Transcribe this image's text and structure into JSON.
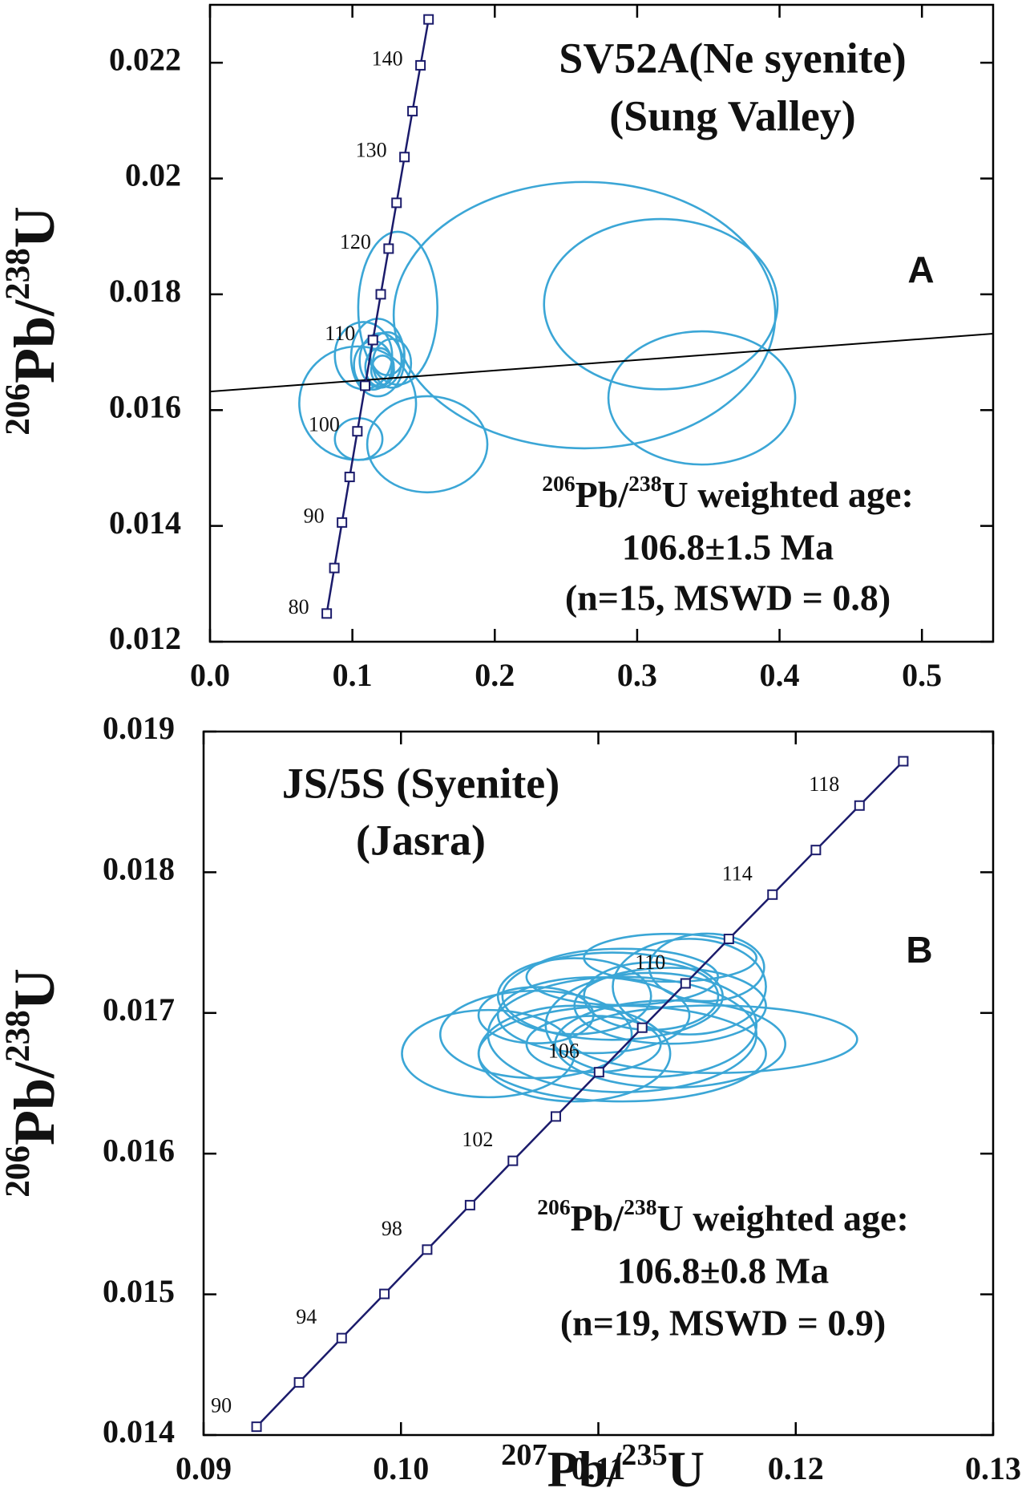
{
  "chart_data": [
    {
      "type": "concordia",
      "title": [
        "SV52A(Ne syenite)",
        "(Sung Valley)"
      ],
      "panel_label": "A",
      "annotation": [
        [
          "206",
          "Pb/",
          "238",
          "U weighted age:"
        ],
        "106.8±1.5 Ma",
        "(n=15, MSWD = 0.8)"
      ],
      "y_label": [
        "206",
        "Pb/",
        "238",
        "U"
      ],
      "xlim": [
        0,
        0.55
      ],
      "xticks": [
        {
          "value": 0,
          "label": "0.0"
        },
        0.1,
        0.2,
        0.3,
        0.4,
        0.5
      ],
      "ylim": [
        0.012,
        0.023
      ],
      "yticks": [
        0.012,
        0.014,
        0.016,
        0.018,
        0.02,
        0.022
      ],
      "concordia_color": "#1b1b6b",
      "concordia": {
        "x": [
          0.081975,
          0.087316,
          0.092683,
          0.098078,
          0.103498,
          0.108945,
          0.114418,
          0.119923,
          0.125448,
          0.131011,
          0.136594,
          0.142195,
          0.147841,
          0.1535
        ],
        "y": [
          0.012487,
          0.013273,
          0.014059,
          0.014846,
          0.015634,
          0.016421,
          0.01721,
          0.018,
          0.018789,
          0.01958,
          0.020371,
          0.021163,
          0.021955,
          0.022748
        ],
        "labels": [
          80,
          null,
          90,
          null,
          100,
          null,
          110,
          null,
          120,
          null,
          130,
          null,
          140,
          null
        ]
      },
      "line": {
        "x": [
          0,
          0.55
        ],
        "y": [
          0.01632,
          0.01732
        ],
        "color": "#000000"
      },
      "ellipse_color": "#3ba6d6",
      "ellipses": {
        "x": [
          0.263,
          0.3166,
          0.3454,
          0.1319,
          0.1526,
          0.1037,
          0.1044,
          0.1078,
          0.1198,
          0.1245,
          0.1191,
          0.1145,
          0.1278,
          0.1212,
          0.1178
        ],
        "y": [
          0.01764,
          0.01783,
          0.01621,
          0.01776,
          0.01541,
          0.01612,
          0.0155,
          0.016942,
          0.016858,
          0.016975,
          0.016741,
          0.016775,
          0.016808,
          0.016691,
          0.016908
        ],
        "x_err": [
          0.134,
          0.082,
          0.0656,
          0.0278,
          0.0422,
          0.041,
          0.0167,
          0.0201,
          0.0147,
          0.012,
          0.01,
          0.0134,
          0.0134,
          0.008,
          0.0187
        ],
        "y_err": [
          0.0023,
          0.00147,
          0.00115,
          0.00132,
          0.00083,
          0.00098,
          0.00036,
          0.00058,
          0.00047,
          0.00037,
          0.00033,
          0.00042,
          0.00042,
          0.00025,
          0.00067
        ]
      }
    },
    {
      "type": "concordia",
      "title": [
        "JS/5S (Syenite)",
        "(Jasra)"
      ],
      "panel_label": "B",
      "annotation": [
        [
          "206",
          "Pb/",
          "238",
          "U weighted age:"
        ],
        "106.8±0.8 Ma",
        "(n=19, MSWD = 0.9)"
      ],
      "y_label": [
        "206",
        "Pb/",
        "238",
        "U"
      ],
      "x_label": [
        "207",
        "Pb/",
        "235",
        "U"
      ],
      "xlim": [
        0.09,
        0.13
      ],
      "xticks": [
        0.09,
        {
          "value": 0.1,
          "label": "0.10"
        },
        0.11,
        0.12,
        0.13
      ],
      "ylim": [
        0.014,
        0.019
      ],
      "yticks": [
        0.014,
        0.015,
        0.016,
        0.017,
        0.018,
        0.019
      ],
      "concordia_color": "#1b1b6b",
      "concordia": {
        "x": [
          0.092683,
          0.094837,
          0.096996,
          0.099161,
          0.101326,
          0.103498,
          0.105668,
          0.107846,
          0.110033,
          0.112221,
          0.114418,
          0.116612,
          0.118822,
          0.12102,
          0.12323,
          0.125448
        ],
        "y": [
          0.014059,
          0.014374,
          0.014689,
          0.015003,
          0.015318,
          0.015634,
          0.015949,
          0.016264,
          0.016579,
          0.016895,
          0.01721,
          0.017526,
          0.017841,
          0.018158,
          0.018474,
          0.018789
        ],
        "labels": [
          90,
          null,
          94,
          null,
          98,
          null,
          102,
          null,
          106,
          null,
          110,
          null,
          114,
          null,
          118,
          null
        ]
      },
      "ellipse_color": "#3ba6d6",
      "ellipses": {
        "x": [
          0.10442,
          0.11583,
          0.11072,
          0.11364,
          0.11121,
          0.10976,
          0.10879,
          0.11364,
          0.10684,
          0.11461,
          0.11267,
          0.10879,
          0.11121,
          0.11549,
          0.10976,
          0.11267,
          0.11364,
          0.10684,
          0.11121
        ],
        "y": [
          0.016711,
          0.016813,
          0.017119,
          0.017392,
          0.016847,
          0.016984,
          0.016711,
          0.017051,
          0.016847,
          0.017187,
          0.016915,
          0.017119,
          0.016711,
          0.017324,
          0.016779,
          0.017119,
          0.016779,
          0.016984,
          0.017256
        ],
        "x_err": [
          0.00437,
          0.00728,
          0.00558,
          0.00437,
          0.0068,
          0.00485,
          0.00485,
          0.00485,
          0.00485,
          0.00388,
          0.00534,
          0.00388,
          0.00728,
          0.00291,
          0.0034,
          0.0034,
          0.00583,
          0.00291,
          0.00485
        ],
        "y_err": [
          0.00031,
          0.00024,
          0.00031,
          0.00017,
          0.00041,
          0.00027,
          0.00034,
          0.00027,
          0.00031,
          0.00034,
          0.00037,
          0.00027,
          0.00034,
          0.00024,
          0.0002,
          0.00024,
          0.00031,
          0.0002,
          0.0002
        ]
      }
    }
  ]
}
